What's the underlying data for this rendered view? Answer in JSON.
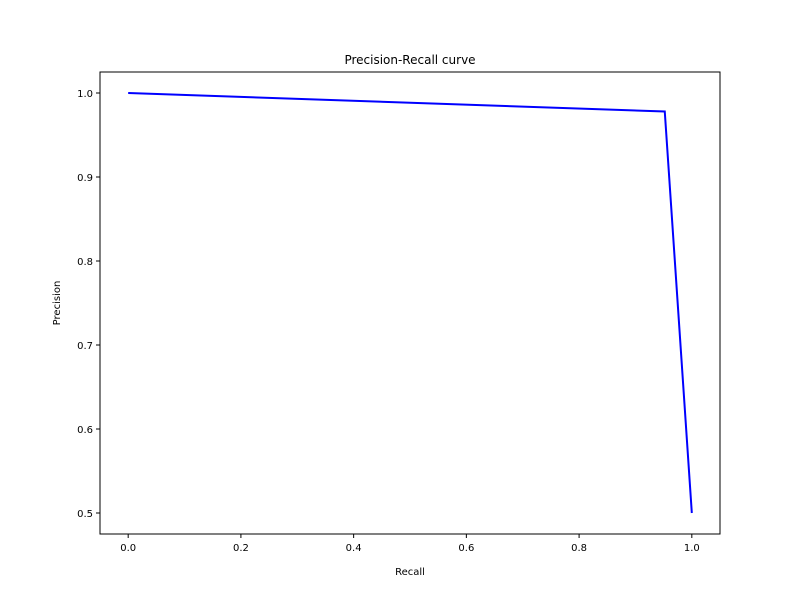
{
  "chart_data": {
    "type": "line",
    "title": "Precision-Recall curve",
    "xlabel": "Recall",
    "ylabel": "Precision",
    "xlim": [
      -0.05,
      1.05
    ],
    "ylim": [
      0.475,
      1.025
    ],
    "xticks": [
      0.0,
      0.2,
      0.4,
      0.6,
      0.8,
      1.0
    ],
    "xtick_labels": [
      "0.0",
      "0.2",
      "0.4",
      "0.6",
      "0.8",
      "1.0"
    ],
    "yticks": [
      0.5,
      0.6,
      0.7,
      0.8,
      0.9,
      1.0
    ],
    "ytick_labels": [
      "0.5",
      "0.6",
      "0.7",
      "0.8",
      "0.9",
      "1.0"
    ],
    "grid": false,
    "series": [
      {
        "color": "#0000ff",
        "x": [
          0.0,
          0.952,
          1.0
        ],
        "y": [
          1.0,
          0.978,
          0.5
        ]
      }
    ]
  }
}
